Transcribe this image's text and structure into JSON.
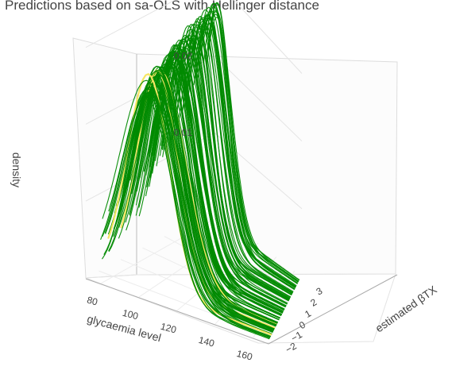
{
  "title": "Predictions based on sa-OLS with Hellinger distance",
  "chart_data": {
    "type": "surface-3d-lines",
    "title": "Predictions based on sa-OLS with Hellinger distance",
    "axes": {
      "x": {
        "label": "glycaemia level",
        "ticks": [
          "80",
          "100",
          "120",
          "140",
          "160"
        ],
        "range": [
          72,
          168
        ]
      },
      "y": {
        "label": "estimated βTX",
        "ticks": [
          "−2",
          "−1",
          "0",
          "1",
          "2",
          "3"
        ],
        "range": [
          -2.6,
          3.3
        ]
      },
      "z": {
        "label": "density",
        "ticks": [
          "0.01",
          "0.02",
          "0.03"
        ],
        "range": [
          0,
          0.031
        ]
      }
    },
    "curve_count": 120,
    "peak_density_range": [
      0.024,
      0.0302
    ],
    "peak_glycaemia_range": [
      84,
      103
    ],
    "curve_spread_sd": 13,
    "highlighted_curves": {
      "count": 3,
      "beta_values": [
        -1.9,
        -1.3,
        -1.0
      ],
      "color": "#f5e663"
    },
    "series_color": "#008a00",
    "grid": true
  }
}
